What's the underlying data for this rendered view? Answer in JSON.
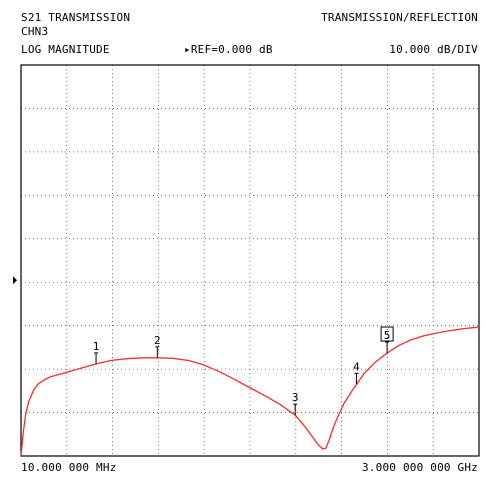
{
  "header": {
    "measurement": "S21 TRANSMISSION",
    "mode": "TRANSMISSION/REFLECTION",
    "channel": "CHN3",
    "format": "LOG MAGNITUDE",
    "ref_label": "REF=0.000 dB",
    "scale": "10.000 dB/DIV"
  },
  "footer": {
    "start_freq": "10.000 000 MHz",
    "stop_freq": "3.000 000 000 GHz"
  },
  "colors": {
    "trace": "#ff2a2a",
    "grid": "#555555",
    "frame": "#000000"
  },
  "chart_data": {
    "type": "line",
    "title": "S21 TRANSMISSION",
    "xlabel": "",
    "ylabel": "",
    "xlim_ghz": [
      0.01,
      3.0
    ],
    "ylim_db": [
      -90,
      0
    ],
    "reference_db": 0.0,
    "scale_db_per_div": 10.0,
    "x_divisions": 10,
    "y_divisions": 9,
    "grid": true,
    "series": [
      {
        "x_ghz": [
          0.01,
          0.025,
          0.04,
          0.06,
          0.09,
          0.12,
          0.16,
          0.2,
          0.25,
          0.3,
          0.4,
          0.5,
          0.6,
          0.7,
          0.8,
          0.9,
          1.0,
          1.1,
          1.2,
          1.3,
          1.4,
          1.5,
          1.6,
          1.7,
          1.8,
          1.85,
          1.9,
          1.95,
          1.98,
          2.0,
          2.02,
          2.05,
          2.08,
          2.12,
          2.18,
          2.25,
          2.32,
          2.4,
          2.48,
          2.56,
          2.64,
          2.72,
          2.8,
          2.9,
          3.0
        ],
        "y_db": [
          -90.0,
          -84.5,
          -80.5,
          -77.5,
          -75.0,
          -73.5,
          -72.5,
          -71.8,
          -71.3,
          -70.8,
          -69.8,
          -68.8,
          -68.0,
          -67.6,
          -67.4,
          -67.4,
          -67.5,
          -68.0,
          -69.0,
          -70.5,
          -72.3,
          -74.2,
          -76.1,
          -78.1,
          -80.6,
          -82.6,
          -85.0,
          -87.4,
          -88.4,
          -88.2,
          -86.5,
          -83.3,
          -80.8,
          -77.8,
          -74.5,
          -71.0,
          -68.5,
          -66.3,
          -64.5,
          -63.2,
          -62.3,
          -61.7,
          -61.2,
          -60.7,
          -60.3
        ]
      }
    ],
    "markers": [
      {
        "label": "1",
        "x_ghz": 0.5,
        "active": false
      },
      {
        "label": "2",
        "x_ghz": 0.9,
        "active": false
      },
      {
        "label": "3",
        "x_ghz": 1.8,
        "active": false
      },
      {
        "label": "4",
        "x_ghz": 2.2,
        "active": false
      },
      {
        "label": "5",
        "x_ghz": 2.4,
        "active": true
      }
    ]
  }
}
